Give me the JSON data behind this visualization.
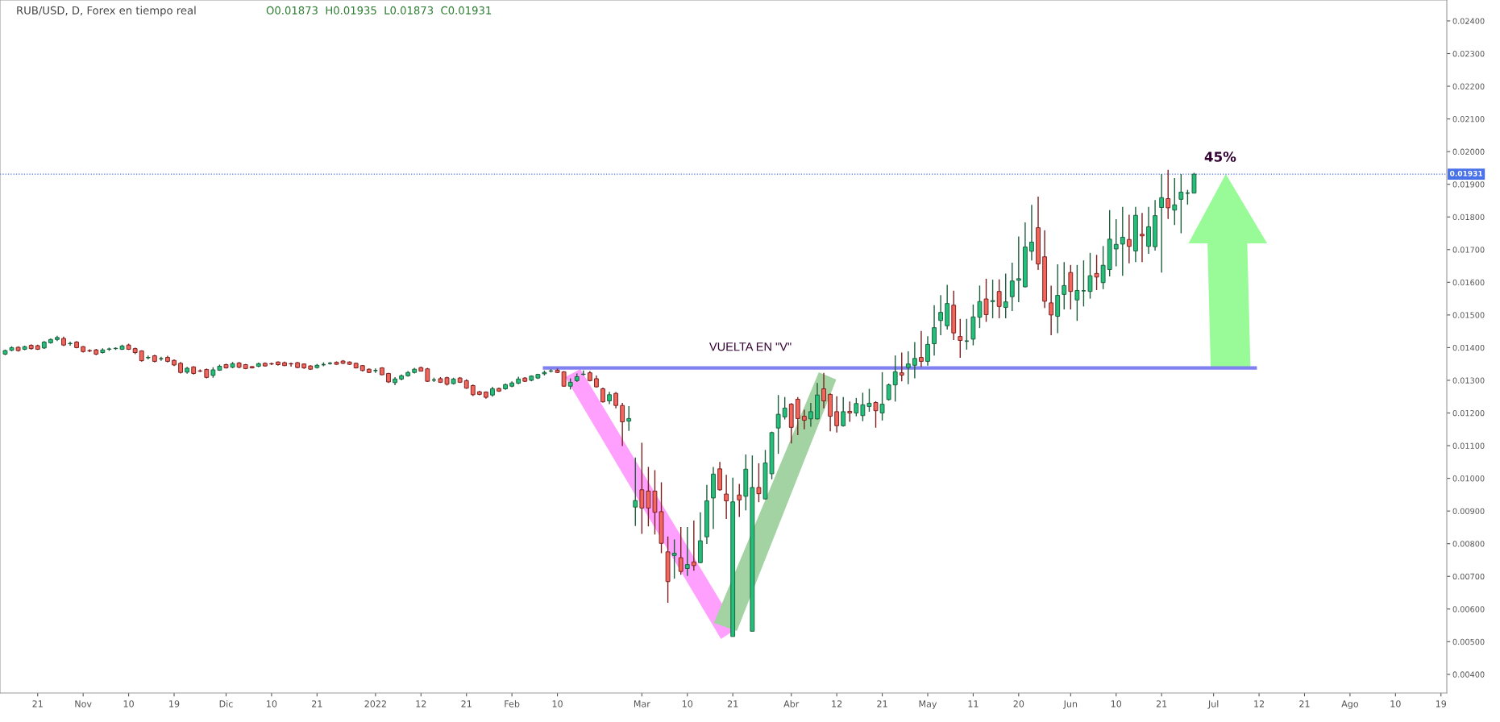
{
  "chart_data": {
    "type": "candlestick",
    "title": "RUB/USD, D, Forex en tiempo real",
    "subtitle": "O0.01873  H0.01935  L0.01873  C0.01931",
    "annotations": [
      "45%"
    ],
    "categories": [
      null,
      null,
      null,
      null,
      null,
      "21",
      null,
      null,
      null,
      null,
      null,
      null,
      "Nov",
      null,
      null,
      null,
      null,
      null,
      null,
      "10",
      null,
      null,
      null,
      null,
      null,
      null,
      "19",
      null,
      null,
      null,
      null,
      null,
      null,
      null,
      "Dic",
      null,
      null,
      null,
      null,
      null,
      null,
      "10",
      null,
      null,
      null,
      null,
      null,
      null,
      "21",
      null,
      null,
      null,
      null,
      null,
      null,
      null,
      null,
      "2022",
      null,
      null,
      null,
      null,
      null,
      null,
      "12",
      null,
      null,
      null,
      null,
      null,
      null,
      "21",
      null,
      null,
      null,
      null,
      null,
      null,
      "Feb",
      null,
      null,
      null,
      null,
      null,
      null,
      "10",
      null,
      null,
      null,
      null,
      null,
      null,
      null,
      null,
      null,
      null,
      null,
      null,
      "Mar",
      null,
      null,
      null,
      null,
      null,
      null,
      "10",
      null,
      null,
      null,
      null,
      null,
      null,
      "21",
      null,
      null,
      null,
      null,
      null,
      null,
      null,
      null,
      "Abr",
      null,
      null,
      null,
      null,
      null,
      null,
      "12",
      null,
      null,
      null,
      null,
      null,
      null,
      "21",
      null,
      null,
      null,
      null,
      null,
      null,
      "May",
      null,
      null,
      null,
      null,
      null,
      null,
      "11",
      null,
      null,
      null,
      null,
      null,
      null,
      "20",
      null,
      null,
      null,
      null,
      null,
      null,
      null,
      "Jun",
      null,
      null,
      null,
      null,
      null,
      null,
      "10",
      null,
      null,
      null,
      null,
      null,
      null,
      "21",
      null,
      null,
      null,
      null,
      null,
      null,
      null,
      "Jul",
      null,
      null,
      null,
      null,
      null,
      null,
      "12",
      null,
      null,
      null,
      null,
      null,
      null,
      "21",
      null,
      null,
      null,
      null,
      null,
      null,
      "Ago",
      null,
      null,
      null,
      null,
      null,
      null,
      "10",
      null,
      null,
      null,
      null,
      null,
      null,
      "19"
    ],
    "ohlc": [
      [
        0.0138,
        0.01394,
        0.01377,
        0.01391
      ],
      [
        0.01392,
        0.01404,
        0.01389,
        0.014
      ],
      [
        0.01401,
        0.01404,
        0.01388,
        0.01391
      ],
      [
        0.01395,
        0.01406,
        0.01392,
        0.01403
      ],
      [
        0.01407,
        0.0141,
        0.01394,
        0.01397
      ],
      [
        0.01406,
        0.01409,
        0.01393,
        0.01395
      ],
      [
        0.01399,
        0.0142,
        0.01396,
        0.01417
      ],
      [
        0.01415,
        0.01428,
        0.01412,
        0.01425
      ],
      [
        0.01425,
        0.01436,
        0.0142,
        0.01431
      ],
      [
        0.01428,
        0.01434,
        0.01405,
        0.01408
      ],
      [
        0.01412,
        0.01418,
        0.01406,
        0.01413
      ],
      [
        0.01417,
        0.0142,
        0.01398,
        0.014
      ],
      [
        0.01403,
        0.01405,
        0.01385,
        0.01388
      ],
      [
        0.01391,
        0.01395,
        0.01386,
        0.0139
      ],
      [
        0.01393,
        0.01396,
        0.01377,
        0.0138
      ],
      [
        0.01385,
        0.01398,
        0.01382,
        0.01393
      ],
      [
        0.01395,
        0.014,
        0.0139,
        0.01396
      ],
      [
        0.01397,
        0.01401,
        0.01393,
        0.01398
      ],
      [
        0.01395,
        0.01409,
        0.01393,
        0.01405
      ],
      [
        0.01408,
        0.01412,
        0.01393,
        0.01395
      ],
      [
        0.01397,
        0.014,
        0.0138,
        0.01385
      ],
      [
        0.0139,
        0.01392,
        0.01357,
        0.0136
      ],
      [
        0.01369,
        0.01376,
        0.01364,
        0.0137
      ],
      [
        0.01375,
        0.01378,
        0.01355,
        0.01358
      ],
      [
        0.01366,
        0.01372,
        0.0136,
        0.01366
      ],
      [
        0.0137,
        0.01375,
        0.01355,
        0.01358
      ],
      [
        0.01361,
        0.01364,
        0.01344,
        0.01347
      ],
      [
        0.01352,
        0.01356,
        0.01321,
        0.01324
      ],
      [
        0.01325,
        0.01341,
        0.0132,
        0.01337
      ],
      [
        0.01341,
        0.01343,
        0.01318,
        0.01321
      ],
      [
        0.01329,
        0.01333,
        0.01325,
        0.01328
      ],
      [
        0.01333,
        0.01336,
        0.01306,
        0.01309
      ],
      [
        0.01315,
        0.0134,
        0.01308,
        0.01332
      ],
      [
        0.01331,
        0.01348,
        0.01329,
        0.01343
      ],
      [
        0.01348,
        0.01351,
        0.01336,
        0.01338
      ],
      [
        0.0134,
        0.01356,
        0.01337,
        0.01351
      ],
      [
        0.01353,
        0.01356,
        0.01337,
        0.0134
      ],
      [
        0.01348,
        0.0135,
        0.01334,
        0.01336
      ],
      [
        0.01342,
        0.01344,
        0.01336,
        0.01338
      ],
      [
        0.01343,
        0.01354,
        0.0134,
        0.01351
      ],
      [
        0.01352,
        0.01355,
        0.01342,
        0.01344
      ],
      [
        0.01351,
        0.01354,
        0.01347,
        0.0135
      ],
      [
        0.01356,
        0.01358,
        0.01345,
        0.01348
      ],
      [
        0.01354,
        0.01357,
        0.01344,
        0.01345
      ],
      [
        0.01351,
        0.01354,
        0.01342,
        0.0135
      ],
      [
        0.01354,
        0.01356,
        0.01337,
        0.01339
      ],
      [
        0.0135,
        0.01352,
        0.01335,
        0.01338
      ],
      [
        0.01344,
        0.01346,
        0.01332,
        0.01334
      ],
      [
        0.01339,
        0.0135,
        0.01336,
        0.01346
      ],
      [
        0.01348,
        0.01355,
        0.01343,
        0.01348
      ],
      [
        0.01352,
        0.01356,
        0.01348,
        0.01352
      ],
      [
        0.01355,
        0.01358,
        0.01348,
        0.01349
      ],
      [
        0.01359,
        0.01362,
        0.0135,
        0.01352
      ],
      [
        0.01356,
        0.01358,
        0.01347,
        0.01349
      ],
      [
        0.01352,
        0.01354,
        0.01336,
        0.01338
      ],
      [
        0.01345,
        0.01347,
        0.01327,
        0.0133
      ],
      [
        0.01334,
        0.01336,
        0.01322,
        0.01324
      ],
      [
        0.0133,
        0.01336,
        0.01323,
        0.0133
      ],
      [
        0.01338,
        0.0134,
        0.01316,
        0.01317
      ],
      [
        0.01321,
        0.01323,
        0.01292,
        0.01295
      ],
      [
        0.01293,
        0.0131,
        0.01285,
        0.01304
      ],
      [
        0.01304,
        0.01318,
        0.013,
        0.01314
      ],
      [
        0.01314,
        0.01328,
        0.01311,
        0.01324
      ],
      [
        0.01324,
        0.01338,
        0.01321,
        0.01334
      ],
      [
        0.01339,
        0.01342,
        0.01327,
        0.01328
      ],
      [
        0.01335,
        0.01338,
        0.01295,
        0.01297
      ],
      [
        0.01301,
        0.01308,
        0.01295,
        0.01301
      ],
      [
        0.01305,
        0.0131,
        0.01292,
        0.01294
      ],
      [
        0.01308,
        0.01311,
        0.01284,
        0.01288
      ],
      [
        0.0129,
        0.01308,
        0.01287,
        0.01304
      ],
      [
        0.01307,
        0.0131,
        0.01292,
        0.01294
      ],
      [
        0.01299,
        0.01303,
        0.01274,
        0.01276
      ],
      [
        0.01284,
        0.01287,
        0.01252,
        0.01256
      ],
      [
        0.01265,
        0.01268,
        0.01254,
        0.01257
      ],
      [
        0.01264,
        0.01266,
        0.01244,
        0.01248
      ],
      [
        0.01255,
        0.0128,
        0.0125,
        0.01274
      ],
      [
        0.01275,
        0.01278,
        0.01265,
        0.01267
      ],
      [
        0.01274,
        0.0129,
        0.01271,
        0.01287
      ],
      [
        0.01282,
        0.01297,
        0.01279,
        0.01292
      ],
      [
        0.01291,
        0.01311,
        0.01288,
        0.01304
      ],
      [
        0.01307,
        0.0131,
        0.01295,
        0.01297
      ],
      [
        0.013,
        0.01315,
        0.01297,
        0.01313
      ],
      [
        0.01307,
        0.0132,
        0.01304,
        0.01318
      ],
      [
        0.0132,
        0.0133,
        0.01315,
        0.01324
      ],
      [
        0.01328,
        0.01334,
        0.01324,
        0.01329
      ],
      [
        0.01331,
        0.01336,
        0.01322,
        0.01324
      ],
      [
        0.01326,
        0.01328,
        0.0128,
        0.01282
      ],
      [
        0.01282,
        0.01306,
        0.01272,
        0.01294
      ],
      [
        0.01299,
        0.01321,
        0.01295,
        0.01311
      ],
      [
        0.01318,
        0.0133,
        0.01315,
        0.01319
      ],
      [
        0.01323,
        0.01328,
        0.01297,
        0.01299
      ],
      [
        0.01305,
        0.01315,
        0.01278,
        0.0128
      ],
      [
        0.01274,
        0.01278,
        0.01232,
        0.01234
      ],
      [
        0.01237,
        0.01265,
        0.01227,
        0.01256
      ],
      [
        0.0126,
        0.01264,
        0.01214,
        0.01223
      ],
      [
        0.01223,
        0.01231,
        0.01099,
        0.01173
      ],
      [
        0.01175,
        0.01221,
        0.01145,
        0.01183
      ],
      [
        0.00912,
        0.01064,
        0.00854,
        0.00932
      ],
      [
        0.00965,
        0.01109,
        0.0083,
        0.00909
      ],
      [
        0.00961,
        0.01035,
        0.00853,
        0.00909
      ],
      [
        0.00961,
        0.01025,
        0.00828,
        0.00896
      ],
      [
        0.00898,
        0.00988,
        0.00771,
        0.00801
      ],
      [
        0.00775,
        0.00822,
        0.00619,
        0.00684
      ],
      [
        0.00764,
        0.00813,
        0.00693,
        0.00771
      ],
      [
        0.00757,
        0.00851,
        0.00705,
        0.00715
      ],
      [
        0.00724,
        0.00851,
        0.00701,
        0.00736
      ],
      [
        0.00744,
        0.00871,
        0.00717,
        0.00733
      ],
      [
        0.00742,
        0.00896,
        0.0074,
        0.00809
      ],
      [
        0.00821,
        0.0098,
        0.00799,
        0.00931
      ],
      [
        0.0094,
        0.01035,
        0.00845,
        0.01013
      ],
      [
        0.01029,
        0.0105,
        0.00962,
        0.00965
      ],
      [
        0.00952,
        0.01011,
        0.00876,
        0.00931
      ],
      [
        0.00516,
        0.01002,
        0.00516,
        0.00928
      ],
      [
        0.00949,
        0.00983,
        0.00882,
        0.00934
      ],
      [
        0.00945,
        0.01073,
        0.00902,
        0.01028
      ],
      [
        0.00532,
        0.0107,
        0.00532,
        0.00972
      ],
      [
        0.00972,
        0.01046,
        0.00927,
        0.00953
      ],
      [
        0.00937,
        0.01087,
        0.00935,
        0.01047
      ],
      [
        0.01014,
        0.01143,
        0.00997,
        0.0114
      ],
      [
        0.01154,
        0.01255,
        0.01075,
        0.01196
      ],
      [
        0.01188,
        0.01249,
        0.0118,
        0.01215
      ],
      [
        0.01227,
        0.0123,
        0.01107,
        0.01156
      ],
      [
        0.01242,
        0.01249,
        0.01132,
        0.01183
      ],
      [
        0.0119,
        0.0121,
        0.0115,
        0.01178
      ],
      [
        0.01182,
        0.01231,
        0.01158,
        0.01204
      ],
      [
        0.01182,
        0.01292,
        0.0118,
        0.01255
      ],
      [
        0.01274,
        0.01323,
        0.01214,
        0.01237
      ],
      [
        0.01257,
        0.0126,
        0.01144,
        0.0119
      ],
      [
        0.01204,
        0.01251,
        0.0114,
        0.01161
      ],
      [
        0.01161,
        0.01249,
        0.01158,
        0.01204
      ],
      [
        0.01205,
        0.01235,
        0.01173,
        0.012
      ],
      [
        0.012,
        0.01246,
        0.0119,
        0.01229
      ],
      [
        0.01192,
        0.01262,
        0.01175,
        0.01225
      ],
      [
        0.0122,
        0.01274,
        0.01204,
        0.0123
      ],
      [
        0.01232,
        0.01236,
        0.01155,
        0.01207
      ],
      [
        0.012,
        0.01325,
        0.01177,
        0.01227
      ],
      [
        0.01241,
        0.0129,
        0.01238,
        0.01286
      ],
      [
        0.01286,
        0.01376,
        0.01235,
        0.01326
      ],
      [
        0.01323,
        0.01385,
        0.01297,
        0.01316
      ],
      [
        0.01339,
        0.01389,
        0.01288,
        0.0135
      ],
      [
        0.01346,
        0.01417,
        0.01306,
        0.01367
      ],
      [
        0.0137,
        0.01451,
        0.01341,
        0.01358
      ],
      [
        0.01358,
        0.01435,
        0.01345,
        0.0141
      ],
      [
        0.01412,
        0.0153,
        0.01376,
        0.01461
      ],
      [
        0.01483,
        0.01561,
        0.01438,
        0.01508
      ],
      [
        0.01467,
        0.01592,
        0.01455,
        0.01535
      ],
      [
        0.0153,
        0.01574,
        0.01423,
        0.01445
      ],
      [
        0.01434,
        0.01488,
        0.01369,
        0.01422
      ],
      [
        0.0142,
        0.01488,
        0.01394,
        0.0142
      ],
      [
        0.01426,
        0.01532,
        0.01407,
        0.01494
      ],
      [
        0.01493,
        0.0159,
        0.0146,
        0.01541
      ],
      [
        0.01549,
        0.01611,
        0.01479,
        0.01501
      ],
      [
        0.01541,
        0.01608,
        0.0149,
        0.01544
      ],
      [
        0.01572,
        0.01609,
        0.0149,
        0.01526
      ],
      [
        0.01523,
        0.01627,
        0.0149,
        0.0154
      ],
      [
        0.01556,
        0.0166,
        0.01512,
        0.01604
      ],
      [
        0.01606,
        0.0174,
        0.01539,
        0.01611
      ],
      [
        0.01586,
        0.01783,
        0.01585,
        0.01708
      ],
      [
        0.01695,
        0.01837,
        0.01667,
        0.01723
      ],
      [
        0.01767,
        0.01862,
        0.01638,
        0.01656
      ],
      [
        0.01678,
        0.01759,
        0.01521,
        0.01542
      ],
      [
        0.01537,
        0.0159,
        0.01438,
        0.015
      ],
      [
        0.01496,
        0.01655,
        0.01444,
        0.0156
      ],
      [
        0.01563,
        0.01662,
        0.01517,
        0.0159
      ],
      [
        0.0163,
        0.01653,
        0.01517,
        0.01572
      ],
      [
        0.01546,
        0.01653,
        0.01482,
        0.01575
      ],
      [
        0.01574,
        0.01667,
        0.01526,
        0.01574
      ],
      [
        0.01572,
        0.0169,
        0.0155,
        0.0162
      ],
      [
        0.01627,
        0.01684,
        0.01576,
        0.01616
      ],
      [
        0.01599,
        0.01711,
        0.01579,
        0.01652
      ],
      [
        0.01639,
        0.01821,
        0.01618,
        0.01732
      ],
      [
        0.01702,
        0.01793,
        0.01649,
        0.01716
      ],
      [
        0.01717,
        0.01831,
        0.0162,
        0.01738
      ],
      [
        0.01731,
        0.01807,
        0.01658,
        0.0171
      ],
      [
        0.01696,
        0.01831,
        0.01662,
        0.01805
      ],
      [
        0.01747,
        0.01812,
        0.01662,
        0.01742
      ],
      [
        0.0171,
        0.01831,
        0.01687,
        0.0177
      ],
      [
        0.01709,
        0.01852,
        0.01697,
        0.01804
      ],
      [
        0.01829,
        0.01931,
        0.0163,
        0.01859
      ],
      [
        0.01856,
        0.01944,
        0.01794,
        0.01828
      ],
      [
        0.01821,
        0.01919,
        0.01775,
        0.01837
      ],
      [
        0.01854,
        0.01931,
        0.0175,
        0.01876
      ],
      [
        0.01873,
        0.01883,
        0.01838,
        0.01873
      ],
      [
        0.01873,
        0.01935,
        0.01873,
        0.01931
      ],
      null,
      null,
      null,
      null,
      null,
      null,
      null,
      null,
      null,
      null,
      null,
      null,
      null,
      null,
      null,
      null,
      null,
      null,
      null,
      null,
      null,
      null,
      null,
      null,
      null,
      null,
      null,
      null,
      null,
      null,
      null,
      null,
      null,
      null,
      null,
      null,
      null,
      null
    ],
    "ylim": [
      0.00343,
      0.02464
    ],
    "yticks": [
      {
        "value": 0.004,
        "label": "0.00400"
      },
      {
        "value": 0.005,
        "label": "0.00500"
      },
      {
        "value": 0.006,
        "label": "0.00600"
      },
      {
        "value": 0.007,
        "label": "0.00700"
      },
      {
        "value": 0.008,
        "label": "0.00800"
      },
      {
        "value": 0.009,
        "label": "0.00900"
      },
      {
        "value": 0.01,
        "label": "0.01000"
      },
      {
        "value": 0.011,
        "label": "0.01100"
      },
      {
        "value": 0.012,
        "label": "0.01200"
      },
      {
        "value": 0.013,
        "label": "0.01300"
      },
      {
        "value": 0.014,
        "label": "0.01400"
      },
      {
        "value": 0.015,
        "label": "0.01500"
      },
      {
        "value": 0.016,
        "label": "0.01600"
      },
      {
        "value": 0.017,
        "label": "0.01700"
      },
      {
        "value": 0.018,
        "label": "0.01800"
      },
      {
        "value": 0.019,
        "label": "0.01900"
      },
      {
        "value": 0.02,
        "label": "0.02000"
      },
      {
        "value": 0.021,
        "label": "0.02100"
      },
      {
        "value": 0.022,
        "label": "0.02200"
      },
      {
        "value": 0.023,
        "label": "0.02300"
      },
      {
        "value": 0.024,
        "label": "0.02400"
      }
    ],
    "ref_lines": [
      {
        "axis": "y",
        "value": 0.01338,
        "label": "VUELTA EN \"V\"",
        "color": "#8080f0",
        "line_style": "solid"
      },
      {
        "axis": "y",
        "value": 0.01931,
        "label": "0.01931",
        "color": "#4a72e8",
        "line_style": "dotted"
      }
    ],
    "grid": false,
    "legend": false
  }
}
